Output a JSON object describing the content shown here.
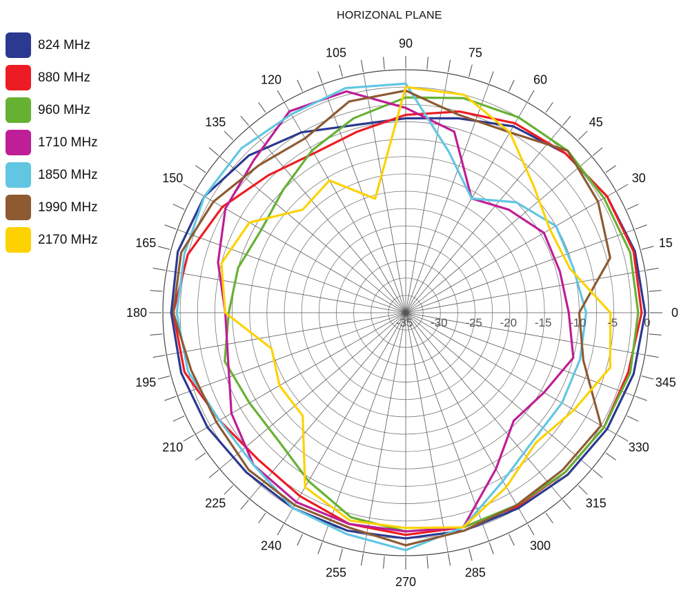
{
  "chart_data": {
    "type": "polar-line",
    "title": "HORIZONAL PLANE",
    "angle_ticks": [
      "0",
      "15",
      "30",
      "45",
      "60",
      "75",
      "90",
      "105",
      "120",
      "135",
      "150",
      "165",
      "180",
      "195",
      "210",
      "225",
      "240",
      "255",
      "270",
      "285",
      "300",
      "315",
      "330",
      "345"
    ],
    "radial_ticks": [
      "0",
      "-5",
      "-10",
      "-15",
      "-20",
      "-25",
      "-30",
      "-35"
    ],
    "rlim": [
      -35,
      0
    ],
    "series": [
      {
        "name": "824 MHz",
        "color": "#2b3990",
        "points": [
          [
            0,
            -0.5
          ],
          [
            15,
            -0.8
          ],
          [
            30,
            -1.5
          ],
          [
            45,
            -2.5
          ],
          [
            60,
            -4
          ],
          [
            75,
            -6
          ],
          [
            90,
            -7
          ],
          [
            105,
            -7
          ],
          [
            120,
            -5
          ],
          [
            135,
            -3
          ],
          [
            150,
            -1.5
          ],
          [
            165,
            -1
          ],
          [
            180,
            -1.2
          ],
          [
            195,
            -1.5
          ],
          [
            210,
            -2
          ],
          [
            225,
            -2.5
          ],
          [
            240,
            -2.5
          ],
          [
            255,
            -2.5
          ],
          [
            270,
            -2.5
          ],
          [
            285,
            -2.5
          ],
          [
            300,
            -2.5
          ],
          [
            315,
            -2
          ],
          [
            330,
            -1.5
          ],
          [
            345,
            -1
          ]
        ]
      },
      {
        "name": "880 MHz",
        "color": "#ed1c24",
        "points": [
          [
            0,
            -1
          ],
          [
            15,
            -1
          ],
          [
            30,
            -1.5
          ],
          [
            45,
            -2.5
          ],
          [
            60,
            -3.5
          ],
          [
            75,
            -5
          ],
          [
            90,
            -6.5
          ],
          [
            105,
            -8
          ],
          [
            120,
            -8.5
          ],
          [
            135,
            -7
          ],
          [
            150,
            -4.5
          ],
          [
            165,
            -2.5
          ],
          [
            180,
            -1.5
          ],
          [
            195,
            -2
          ],
          [
            210,
            -4
          ],
          [
            225,
            -5
          ],
          [
            240,
            -4.5
          ],
          [
            255,
            -3.5
          ],
          [
            270,
            -3
          ],
          [
            285,
            -3
          ],
          [
            300,
            -2.8
          ],
          [
            315,
            -2.5
          ],
          [
            330,
            -2
          ],
          [
            345,
            -1.8
          ]
        ]
      },
      {
        "name": "960 MHz",
        "color": "#66b132",
        "points": [
          [
            0,
            -1.5
          ],
          [
            15,
            -1.5
          ],
          [
            30,
            -2
          ],
          [
            45,
            -2
          ],
          [
            60,
            -2.5
          ],
          [
            75,
            -3
          ],
          [
            90,
            -4
          ],
          [
            105,
            -6
          ],
          [
            120,
            -8
          ],
          [
            135,
            -10
          ],
          [
            150,
            -11
          ],
          [
            165,
            -10
          ],
          [
            180,
            -9.5
          ],
          [
            195,
            -8
          ],
          [
            210,
            -9
          ],
          [
            225,
            -9
          ],
          [
            240,
            -7
          ],
          [
            255,
            -4.5
          ],
          [
            270,
            -3.5
          ],
          [
            285,
            -3
          ],
          [
            300,
            -3
          ],
          [
            315,
            -2.5
          ],
          [
            330,
            -2
          ],
          [
            345,
            -1.5
          ]
        ]
      },
      {
        "name": "1710 MHz",
        "color": "#be1e96",
        "points": [
          [
            0,
            -11.5
          ],
          [
            15,
            -12
          ],
          [
            30,
            -12
          ],
          [
            45,
            -14
          ],
          [
            60,
            -16
          ],
          [
            75,
            -8
          ],
          [
            90,
            -5.5
          ],
          [
            105,
            -2
          ],
          [
            120,
            -1.5
          ],
          [
            135,
            -4
          ],
          [
            150,
            -5
          ],
          [
            165,
            -7
          ],
          [
            180,
            -9
          ],
          [
            195,
            -8.5
          ],
          [
            210,
            -6
          ],
          [
            225,
            -4
          ],
          [
            240,
            -3.5
          ],
          [
            255,
            -3.5
          ],
          [
            270,
            -3.5
          ],
          [
            285,
            -3
          ],
          [
            300,
            -9
          ],
          [
            315,
            -13
          ],
          [
            330,
            -12
          ],
          [
            345,
            -10
          ]
        ]
      },
      {
        "name": "1850 MHz",
        "color": "#62c6e2",
        "points": [
          [
            0,
            -9
          ],
          [
            15,
            -10
          ],
          [
            30,
            -10
          ],
          [
            45,
            -12.5
          ],
          [
            60,
            -16
          ],
          [
            75,
            -11
          ],
          [
            90,
            -2
          ],
          [
            105,
            -1.5
          ],
          [
            120,
            -2
          ],
          [
            135,
            -1.5
          ],
          [
            150,
            -1.5
          ],
          [
            165,
            -2
          ],
          [
            180,
            -2
          ],
          [
            195,
            -2.5
          ],
          [
            210,
            -4
          ],
          [
            225,
            -4
          ],
          [
            240,
            -2.5
          ],
          [
            255,
            -2
          ],
          [
            270,
            -0.8
          ],
          [
            285,
            -3
          ],
          [
            300,
            -7
          ],
          [
            315,
            -9
          ],
          [
            330,
            -9
          ],
          [
            345,
            -9
          ]
        ]
      },
      {
        "name": "1990 MHz",
        "color": "#8d5a32",
        "points": [
          [
            0,
            -10
          ],
          [
            15,
            -4.5
          ],
          [
            30,
            -3
          ],
          [
            45,
            -2
          ],
          [
            60,
            -5
          ],
          [
            75,
            -5.5
          ],
          [
            90,
            -3
          ],
          [
            105,
            -3.5
          ],
          [
            120,
            -6
          ],
          [
            135,
            -5
          ],
          [
            150,
            -3
          ],
          [
            165,
            -1.5
          ],
          [
            180,
            -1.5
          ],
          [
            195,
            -3
          ],
          [
            210,
            -3.5
          ],
          [
            225,
            -3
          ],
          [
            240,
            -3
          ],
          [
            255,
            -3
          ],
          [
            270,
            -1.5
          ],
          [
            285,
            -2.5
          ],
          [
            300,
            -3
          ],
          [
            315,
            -3
          ],
          [
            330,
            -2.5
          ],
          [
            345,
            -8.5
          ]
        ]
      },
      {
        "name": "2170 MHz",
        "color": "#fdd200",
        "points": [
          [
            0,
            -5.5
          ],
          [
            15,
            -10.5
          ],
          [
            30,
            -11
          ],
          [
            45,
            -9
          ],
          [
            60,
            -5
          ],
          [
            75,
            -2.5
          ],
          [
            90,
            -2.5
          ],
          [
            105,
            -18
          ],
          [
            120,
            -13
          ],
          [
            135,
            -14
          ],
          [
            150,
            -9
          ],
          [
            165,
            -7.5
          ],
          [
            180,
            -9
          ],
          [
            195,
            -15
          ],
          [
            210,
            -14
          ],
          [
            225,
            -14
          ],
          [
            240,
            -6
          ],
          [
            255,
            -4
          ],
          [
            270,
            -4
          ],
          [
            285,
            -3
          ],
          [
            300,
            -6
          ],
          [
            315,
            -8.5
          ],
          [
            330,
            -7
          ],
          [
            345,
            -4.5
          ]
        ]
      }
    ]
  }
}
